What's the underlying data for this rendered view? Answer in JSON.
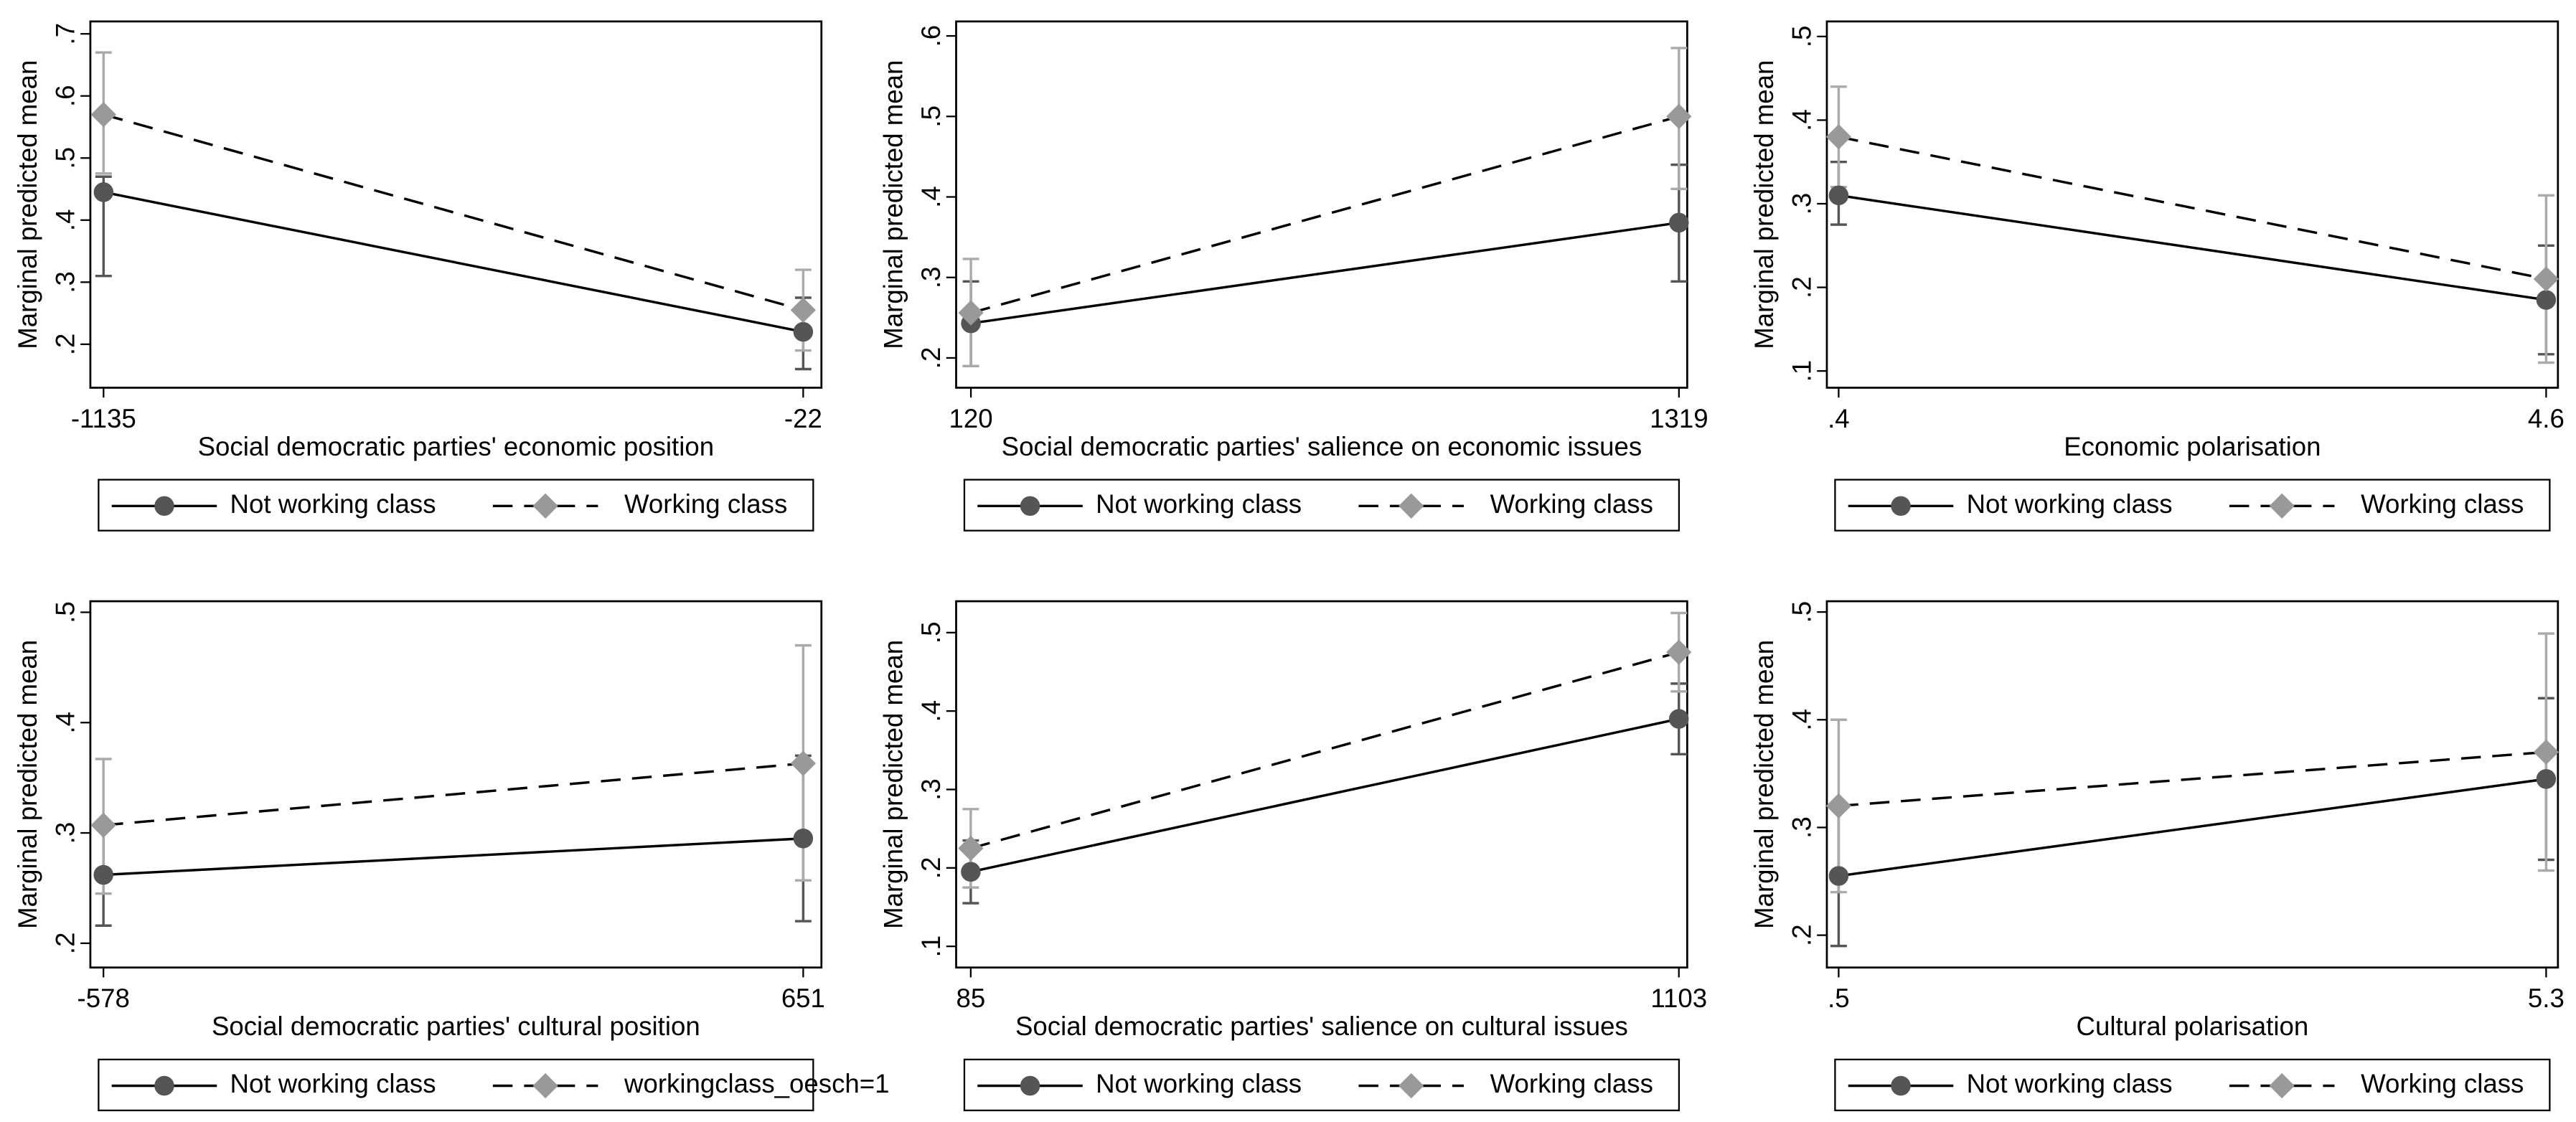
{
  "chart_data": [
    {
      "type": "line",
      "ylabel": "Marginal predicted mean",
      "xlabel": "Social democratic parties' economic position",
      "x": [
        -1135,
        -22
      ],
      "xlim": [
        -1156,
        7
      ],
      "xticks": [
        -1135,
        -22
      ],
      "ylim": [
        0.13,
        0.72
      ],
      "yticks": [
        {
          "value": 0.2,
          "label": ".2"
        },
        {
          "value": 0.3,
          "label": ".3"
        },
        {
          "value": 0.4,
          "label": ".4"
        },
        {
          "value": 0.5,
          "label": ".5"
        },
        {
          "value": 0.6,
          "label": ".6"
        },
        {
          "value": 0.7,
          "label": ".7"
        }
      ],
      "series": [
        {
          "name": "Not working class",
          "color": "#555555",
          "dash": false,
          "marker": "circle",
          "values": [
            0.445,
            0.22
          ],
          "lower": [
            0.31,
            0.16
          ],
          "upper": [
            0.47,
            0.275
          ]
        },
        {
          "name": "Working class",
          "color": "#999999",
          "dash": true,
          "marker": "diamond",
          "values": [
            0.57,
            0.255
          ],
          "lower": [
            0.475,
            0.19
          ],
          "upper": [
            0.67,
            0.32
          ]
        }
      ]
    },
    {
      "type": "line",
      "ylabel": "Marginal predicted mean",
      "xlabel": "Social democratic parties' salience on economic issues",
      "x": [
        120,
        1319
      ],
      "xlim": [
        95,
        1333
      ],
      "xticks": [
        120,
        1319
      ],
      "ylim": [
        0.163,
        0.618
      ],
      "yticks": [
        {
          "value": 0.2,
          "label": ".2"
        },
        {
          "value": 0.3,
          "label": ".3"
        },
        {
          "value": 0.4,
          "label": ".4"
        },
        {
          "value": 0.5,
          "label": ".5"
        },
        {
          "value": 0.6,
          "label": ".6"
        }
      ],
      "series": [
        {
          "name": "Not working class",
          "color": "#555555",
          "dash": false,
          "marker": "circle",
          "values": [
            0.243,
            0.368
          ],
          "lower": [
            0.19,
            0.295
          ],
          "upper": [
            0.295,
            0.44
          ]
        },
        {
          "name": "Working class",
          "color": "#999999",
          "dash": true,
          "marker": "diamond",
          "values": [
            0.256,
            0.5
          ],
          "lower": [
            0.19,
            0.41
          ],
          "upper": [
            0.323,
            0.585
          ]
        }
      ]
    },
    {
      "type": "line",
      "ylabel": "Marginal predicted mean",
      "xlabel": "Economic polarisation",
      "x": [
        0.4,
        4.6
      ],
      "xlim": [
        0.33,
        4.67
      ],
      "xticks": [
        {
          "value": 0.4,
          "label": ".4"
        },
        4.6
      ],
      "ylim": [
        0.08,
        0.518
      ],
      "yticks": [
        {
          "value": 0.1,
          "label": ".1"
        },
        {
          "value": 0.2,
          "label": ".2"
        },
        {
          "value": 0.3,
          "label": ".3"
        },
        {
          "value": 0.4,
          "label": ".4"
        },
        {
          "value": 0.5,
          "label": ".5"
        }
      ],
      "series": [
        {
          "name": "Not working class",
          "color": "#555555",
          "dash": false,
          "marker": "circle",
          "values": [
            0.31,
            0.185
          ],
          "lower": [
            0.275,
            0.12
          ],
          "upper": [
            0.35,
            0.25
          ]
        },
        {
          "name": "Working class",
          "color": "#999999",
          "dash": true,
          "marker": "diamond",
          "values": [
            0.38,
            0.21
          ],
          "lower": [
            0.32,
            0.11
          ],
          "upper": [
            0.44,
            0.31
          ]
        }
      ]
    },
    {
      "type": "line",
      "ylabel": "Marginal predicted mean",
      "xlabel": "Social democratic parties' cultural position",
      "x": [
        -578,
        651
      ],
      "xlim": [
        -601,
        683
      ],
      "xticks": [
        -578,
        651
      ],
      "ylim": [
        0.178,
        0.51
      ],
      "yticks": [
        {
          "value": 0.2,
          "label": ".2"
        },
        {
          "value": 0.3,
          "label": ".3"
        },
        {
          "value": 0.4,
          "label": ".4"
        },
        {
          "value": 0.5,
          "label": ".5"
        }
      ],
      "series": [
        {
          "name": "Not working class",
          "color": "#555555",
          "dash": false,
          "marker": "circle",
          "values": [
            0.262,
            0.295
          ],
          "lower": [
            0.216,
            0.22
          ],
          "upper": [
            0.31,
            0.37
          ]
        },
        {
          "name": "workingclass_oesch=1",
          "color": "#999999",
          "dash": true,
          "marker": "diamond",
          "values": [
            0.307,
            0.363
          ],
          "lower": [
            0.245,
            0.257
          ],
          "upper": [
            0.367,
            0.47
          ]
        }
      ]
    },
    {
      "type": "line",
      "ylabel": "Marginal predicted mean",
      "xlabel": "Social democratic parties' salience on cultural issues",
      "x": [
        85,
        1103
      ],
      "xlim": [
        64,
        1115
      ],
      "xticks": [
        85,
        1103
      ],
      "ylim": [
        0.073,
        0.54
      ],
      "yticks": [
        {
          "value": 0.1,
          "label": ".1"
        },
        {
          "value": 0.2,
          "label": ".2"
        },
        {
          "value": 0.3,
          "label": ".3"
        },
        {
          "value": 0.4,
          "label": ".4"
        },
        {
          "value": 0.5,
          "label": ".5"
        }
      ],
      "series": [
        {
          "name": "Not working class",
          "color": "#555555",
          "dash": false,
          "marker": "circle",
          "values": [
            0.195,
            0.39
          ],
          "lower": [
            0.155,
            0.345
          ],
          "upper": [
            0.235,
            0.435
          ]
        },
        {
          "name": "Working class",
          "color": "#999999",
          "dash": true,
          "marker": "diamond",
          "values": [
            0.225,
            0.475
          ],
          "lower": [
            0.175,
            0.425
          ],
          "upper": [
            0.275,
            0.525
          ]
        }
      ]
    },
    {
      "type": "line",
      "ylabel": "Marginal predicted mean",
      "xlabel": "Cultural polarisation",
      "x": [
        0.5,
        5.3
      ],
      "xlim": [
        0.42,
        5.38
      ],
      "xticks": [
        {
          "value": 0.5,
          "label": ".5"
        },
        5.3
      ],
      "ylim": [
        0.17,
        0.51
      ],
      "yticks": [
        {
          "value": 0.2,
          "label": ".2"
        },
        {
          "value": 0.3,
          "label": ".3"
        },
        {
          "value": 0.4,
          "label": ".4"
        },
        {
          "value": 0.5,
          "label": ".5"
        }
      ],
      "series": [
        {
          "name": "Not working class",
          "color": "#555555",
          "dash": false,
          "marker": "circle",
          "values": [
            0.255,
            0.345
          ],
          "lower": [
            0.19,
            0.27
          ],
          "upper": [
            0.32,
            0.42
          ]
        },
        {
          "name": "Working class",
          "color": "#999999",
          "dash": true,
          "marker": "diamond",
          "values": [
            0.32,
            0.37
          ],
          "lower": [
            0.24,
            0.26
          ],
          "upper": [
            0.4,
            0.48
          ]
        }
      ]
    }
  ]
}
